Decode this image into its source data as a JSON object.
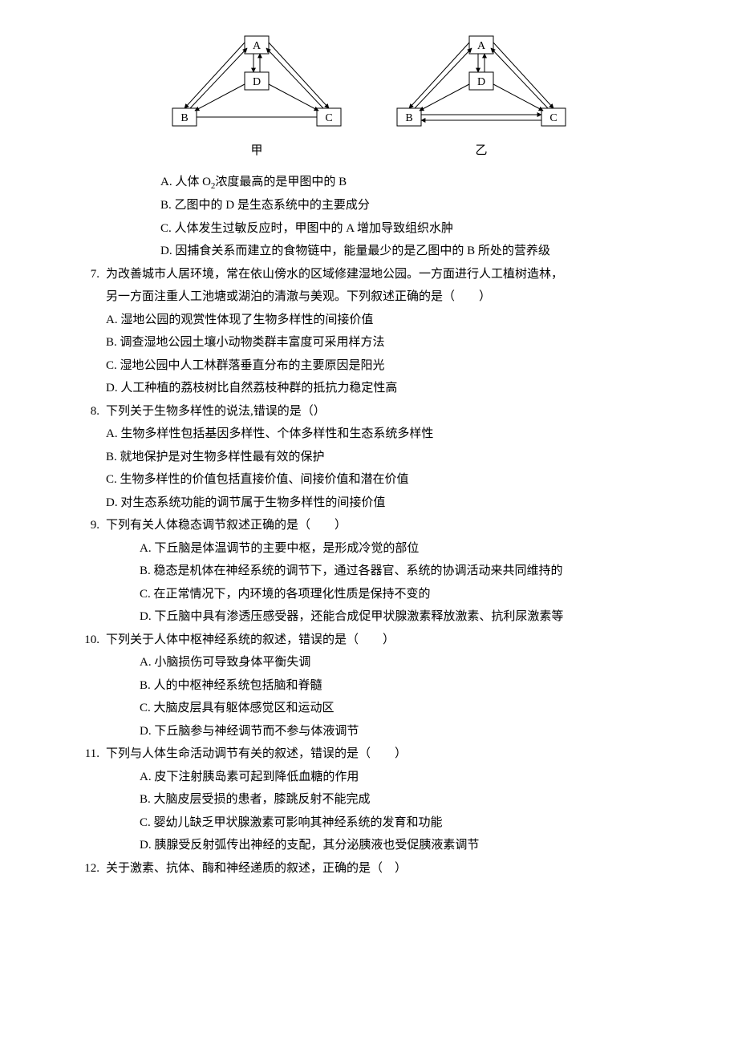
{
  "diagrams": {
    "left_label": "甲",
    "right_label": "乙",
    "node_labels": {
      "A": "A",
      "B": "B",
      "C": "C",
      "D": "D"
    },
    "box_stroke": "#000000",
    "box_fill": "#ffffff",
    "arrow_stroke": "#000000",
    "line_width": 1
  },
  "q6_tail_options": {
    "A_pre": "A. 人体 O",
    "A_sub": "2",
    "A_post": "浓度最高的是甲图中的 B",
    "B": "B. 乙图中的 D 是生态系统中的主要成分",
    "C": "C. 人体发生过敏反应时，甲图中的 A 增加导致组织水肿",
    "D": "D. 因捕食关系而建立的食物链中，能量最少的是乙图中的 B 所处的营养级"
  },
  "questions": [
    {
      "num": "7.",
      "stem": "为改善城市人居环境，常在依山傍水的区域修建湿地公园。一方面进行人工植树造林，",
      "stem_cont": "另一方面注重人工池塘或湖泊的清澈与美观。下列叙述正确的是（　　）",
      "indent": false,
      "options": {
        "A": "A. 湿地公园的观赏性体现了生物多样性的间接价值",
        "B": "B. 调查湿地公园土壤小动物类群丰富度可采用样方法",
        "C": "C. 湿地公园中人工林群落垂直分布的主要原因是阳光",
        "D": "D. 人工种植的荔枝树比自然荔枝种群的抵抗力稳定性高"
      }
    },
    {
      "num": "8.",
      "stem": "下列关于生物多样性的说法,错误的是（）",
      "stem_cont": "",
      "indent": false,
      "options": {
        "A": "A. 生物多样性包括基因多样性、个体多样性和生态系统多样性",
        "B": "B. 就地保护是对生物多样性最有效的保护",
        "C": "C. 生物多样性的价值包括直接价值、间接价值和潜在价值",
        "D": "D. 对生态系统功能的调节属于生物多样性的间接价值"
      }
    },
    {
      "num": "9.",
      "stem": "下列有关人体稳态调节叙述正确的是（　　）",
      "stem_cont": "",
      "indent": true,
      "options": {
        "A": "A. 下丘脑是体温调节的主要中枢，是形成冷觉的部位",
        "B": "B. 稳态是机体在神经系统的调节下，通过各器官、系统的协调活动来共同维持的",
        "C": "C. 在正常情况下，内环境的各项理化性质是保持不变的",
        "D": "D. 下丘脑中具有渗透压感受器，还能合成促甲状腺激素释放激素、抗利尿激素等"
      }
    },
    {
      "num": "10.",
      "stem": "下列关于人体中枢神经系统的叙述，错误的是（　　）",
      "stem_cont": "",
      "indent": true,
      "options": {
        "A": "A. 小脑损伤可导致身体平衡失调",
        "B": "B. 人的中枢神经系统包括脑和脊髓",
        "C": "C. 大脑皮层具有躯体感觉区和运动区",
        "D": "D. 下丘脑参与神经调节而不参与体液调节"
      }
    },
    {
      "num": "11.",
      "stem": "下列与人体生命活动调节有关的叙述，错误的是（　　）",
      "stem_cont": "",
      "indent": true,
      "options": {
        "A": "A. 皮下注射胰岛素可起到降低血糖的作用",
        "B": "B. 大脑皮层受损的患者，膝跳反射不能完成",
        "C": "C. 婴幼儿缺乏甲状腺激素可影响其神经系统的发育和功能",
        "D": "D. 胰腺受反射弧传出神经的支配，其分泌胰液也受促胰液素调节"
      }
    },
    {
      "num": "12.",
      "stem": "关于激素、抗体、酶和神经递质的叙述，正确的是（　）",
      "stem_cont": "",
      "indent": false,
      "options": {}
    }
  ]
}
